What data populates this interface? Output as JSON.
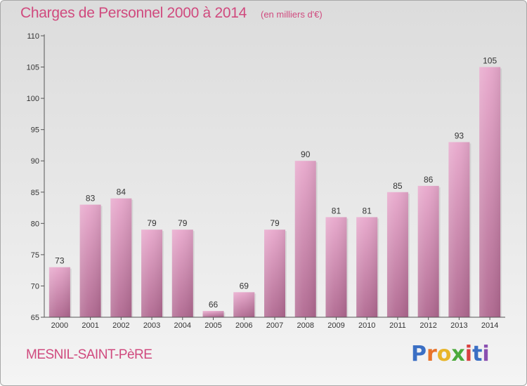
{
  "header": {
    "title": "Charges de Personnel 2000 à 2014",
    "subtitle": "(en milliers d'€)"
  },
  "footer": {
    "commune": "MESNIL-SAINT-PèRE",
    "brand": {
      "letters": [
        "P",
        "r",
        "o",
        "x",
        "i",
        "t",
        "i"
      ],
      "colors": [
        "#3b6fc4",
        "#e8732a",
        "#e8b52a",
        "#4caa3c",
        "#d94040",
        "#3b6fc4",
        "#8a4fb0"
      ]
    }
  },
  "colors": {
    "bar_top": "#e8a8cc",
    "bar_bottom": "#b06890",
    "label": "#333333",
    "accent": "#d04a7e"
  },
  "chart_data": {
    "type": "bar",
    "categories": [
      "2000",
      "2001",
      "2002",
      "2003",
      "2004",
      "2005",
      "2006",
      "2007",
      "2008",
      "2009",
      "2010",
      "2011",
      "2012",
      "2013",
      "2014"
    ],
    "values": [
      73,
      83,
      84,
      79,
      79,
      66,
      69,
      79,
      90,
      81,
      81,
      85,
      86,
      93,
      105
    ],
    "data_labels": [
      "73",
      "83",
      "84",
      "79",
      "79",
      "66",
      "69",
      "79",
      "90",
      "81",
      "81",
      "85",
      "86",
      "93",
      "105"
    ],
    "title": "Charges de Personnel 2000 à 2014",
    "xlabel": "",
    "ylabel": "",
    "ylim": [
      65,
      110
    ],
    "yticks": [
      65,
      70,
      75,
      80,
      85,
      90,
      95,
      100,
      105,
      110
    ],
    "grid": false,
    "legend": "none"
  }
}
